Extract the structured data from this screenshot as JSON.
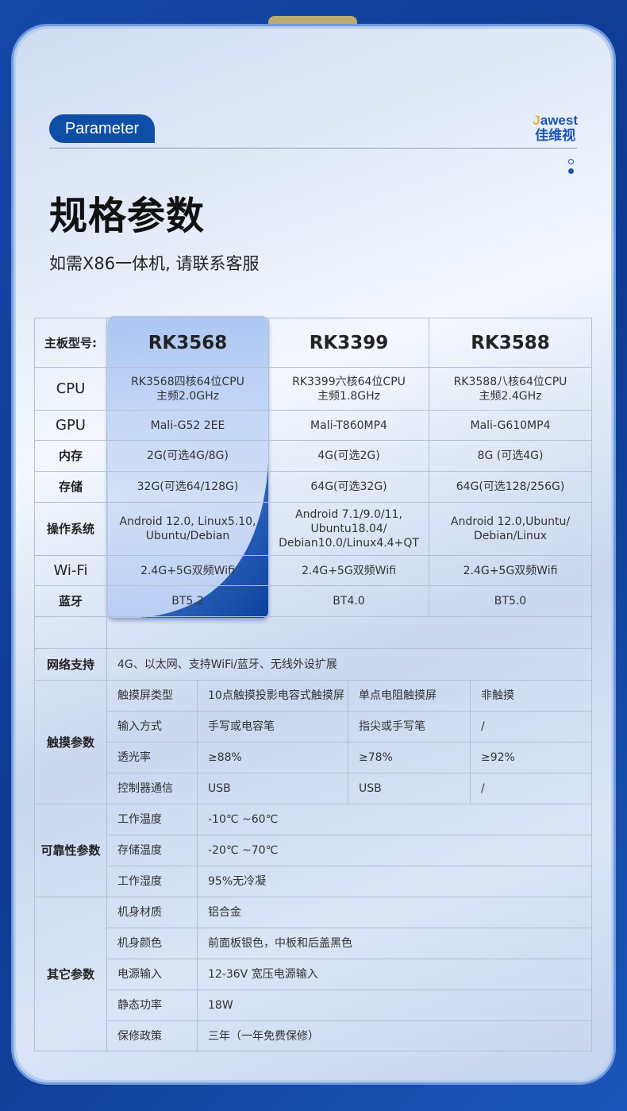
{
  "header": {
    "badge": "Parameter",
    "logo_en_mark": "J",
    "logo_en": "awest",
    "logo_cn": "佳维视",
    "title": "规格参数",
    "subtitle": "如需X86一体机, 请联系客服"
  },
  "colors": {
    "accent": "#0f4ea6",
    "background": "#1548a8"
  },
  "specs": {
    "header_label": "主板型号:",
    "models": [
      "RK3568",
      "RK3399",
      "RK3588"
    ],
    "rows": [
      {
        "label": "CPU",
        "values": [
          [
            "RK3568四核64位CPU",
            "主频2.0GHz"
          ],
          [
            "RK3399六核64位CPU",
            "主频1.8GHz"
          ],
          [
            "RK3588八核64位CPU",
            "主频2.4GHz"
          ]
        ]
      },
      {
        "label": "GPU",
        "values": [
          [
            "Mali-G52 2EE"
          ],
          [
            "Mali-T860MP4"
          ],
          [
            "Mali-G610MP4"
          ]
        ]
      },
      {
        "label": "内存",
        "values": [
          [
            "2G(可选4G/8G)"
          ],
          [
            "4G(可选2G)"
          ],
          [
            "8G (可选4G)"
          ]
        ]
      },
      {
        "label": "存储",
        "values": [
          [
            "32G(可选64/128G)"
          ],
          [
            "64G(可选32G)"
          ],
          [
            "64G(可选128/256G)"
          ]
        ]
      },
      {
        "label": "操作系统",
        "values": [
          [
            "Android 12.0, Linux5.10,",
            "Ubuntu/Debian"
          ],
          [
            "Android 7.1/9.0/11,",
            "Ubuntu18.04/",
            "Debian10.0/Linux4.4+QT"
          ],
          [
            "Android 12.0,Ubuntu/",
            "Debian/Linux"
          ]
        ]
      },
      {
        "label": "Wi-Fi",
        "values": [
          [
            "2.4G+5G双频Wifi"
          ],
          [
            "2.4G+5G双频Wifi"
          ],
          [
            "2.4G+5G双频Wifi"
          ]
        ]
      },
      {
        "label": "蓝牙",
        "values": [
          [
            "BT5.2"
          ],
          [
            "BT4.0"
          ],
          [
            "BT5.0"
          ]
        ]
      }
    ]
  },
  "network": {
    "label": "网络支持",
    "value": "4G、以太网、支持WiFi/蓝牙、无线外设扩展"
  },
  "touch": {
    "label": "触摸参数",
    "rows": [
      {
        "name": "触摸屏类型",
        "values": [
          "10点触摸投影电容式触摸屏",
          "单点电阻触摸屏",
          "非触摸"
        ]
      },
      {
        "name": "输入方式",
        "values": [
          "手写或电容笔",
          "指尖或手写笔",
          "/"
        ]
      },
      {
        "name": "透光率",
        "values": [
          "≥88%",
          "≥78%",
          "≥92%"
        ]
      },
      {
        "name": "控制器通信",
        "values": [
          "USB",
          "USB",
          "/"
        ]
      }
    ]
  },
  "reliability": {
    "label": "可靠性参数",
    "rows": [
      {
        "name": "工作温度",
        "value": "-10℃ ~60℃"
      },
      {
        "name": "存储温度",
        "value": "-20℃ ~70℃"
      },
      {
        "name": "工作湿度",
        "value": "95%无冷凝"
      }
    ]
  },
  "other": {
    "label": "其它参数",
    "rows": [
      {
        "name": "机身材质",
        "value": "铝合金"
      },
      {
        "name": "机身颜色",
        "value": "前面板银色，中板和后盖黑色"
      },
      {
        "name": "电源输入",
        "value": "12-36V 宽压电源输入"
      },
      {
        "name": "静态功率",
        "value": "18W"
      },
      {
        "name": "保修政策",
        "value": "三年（一年免费保修）"
      }
    ]
  }
}
